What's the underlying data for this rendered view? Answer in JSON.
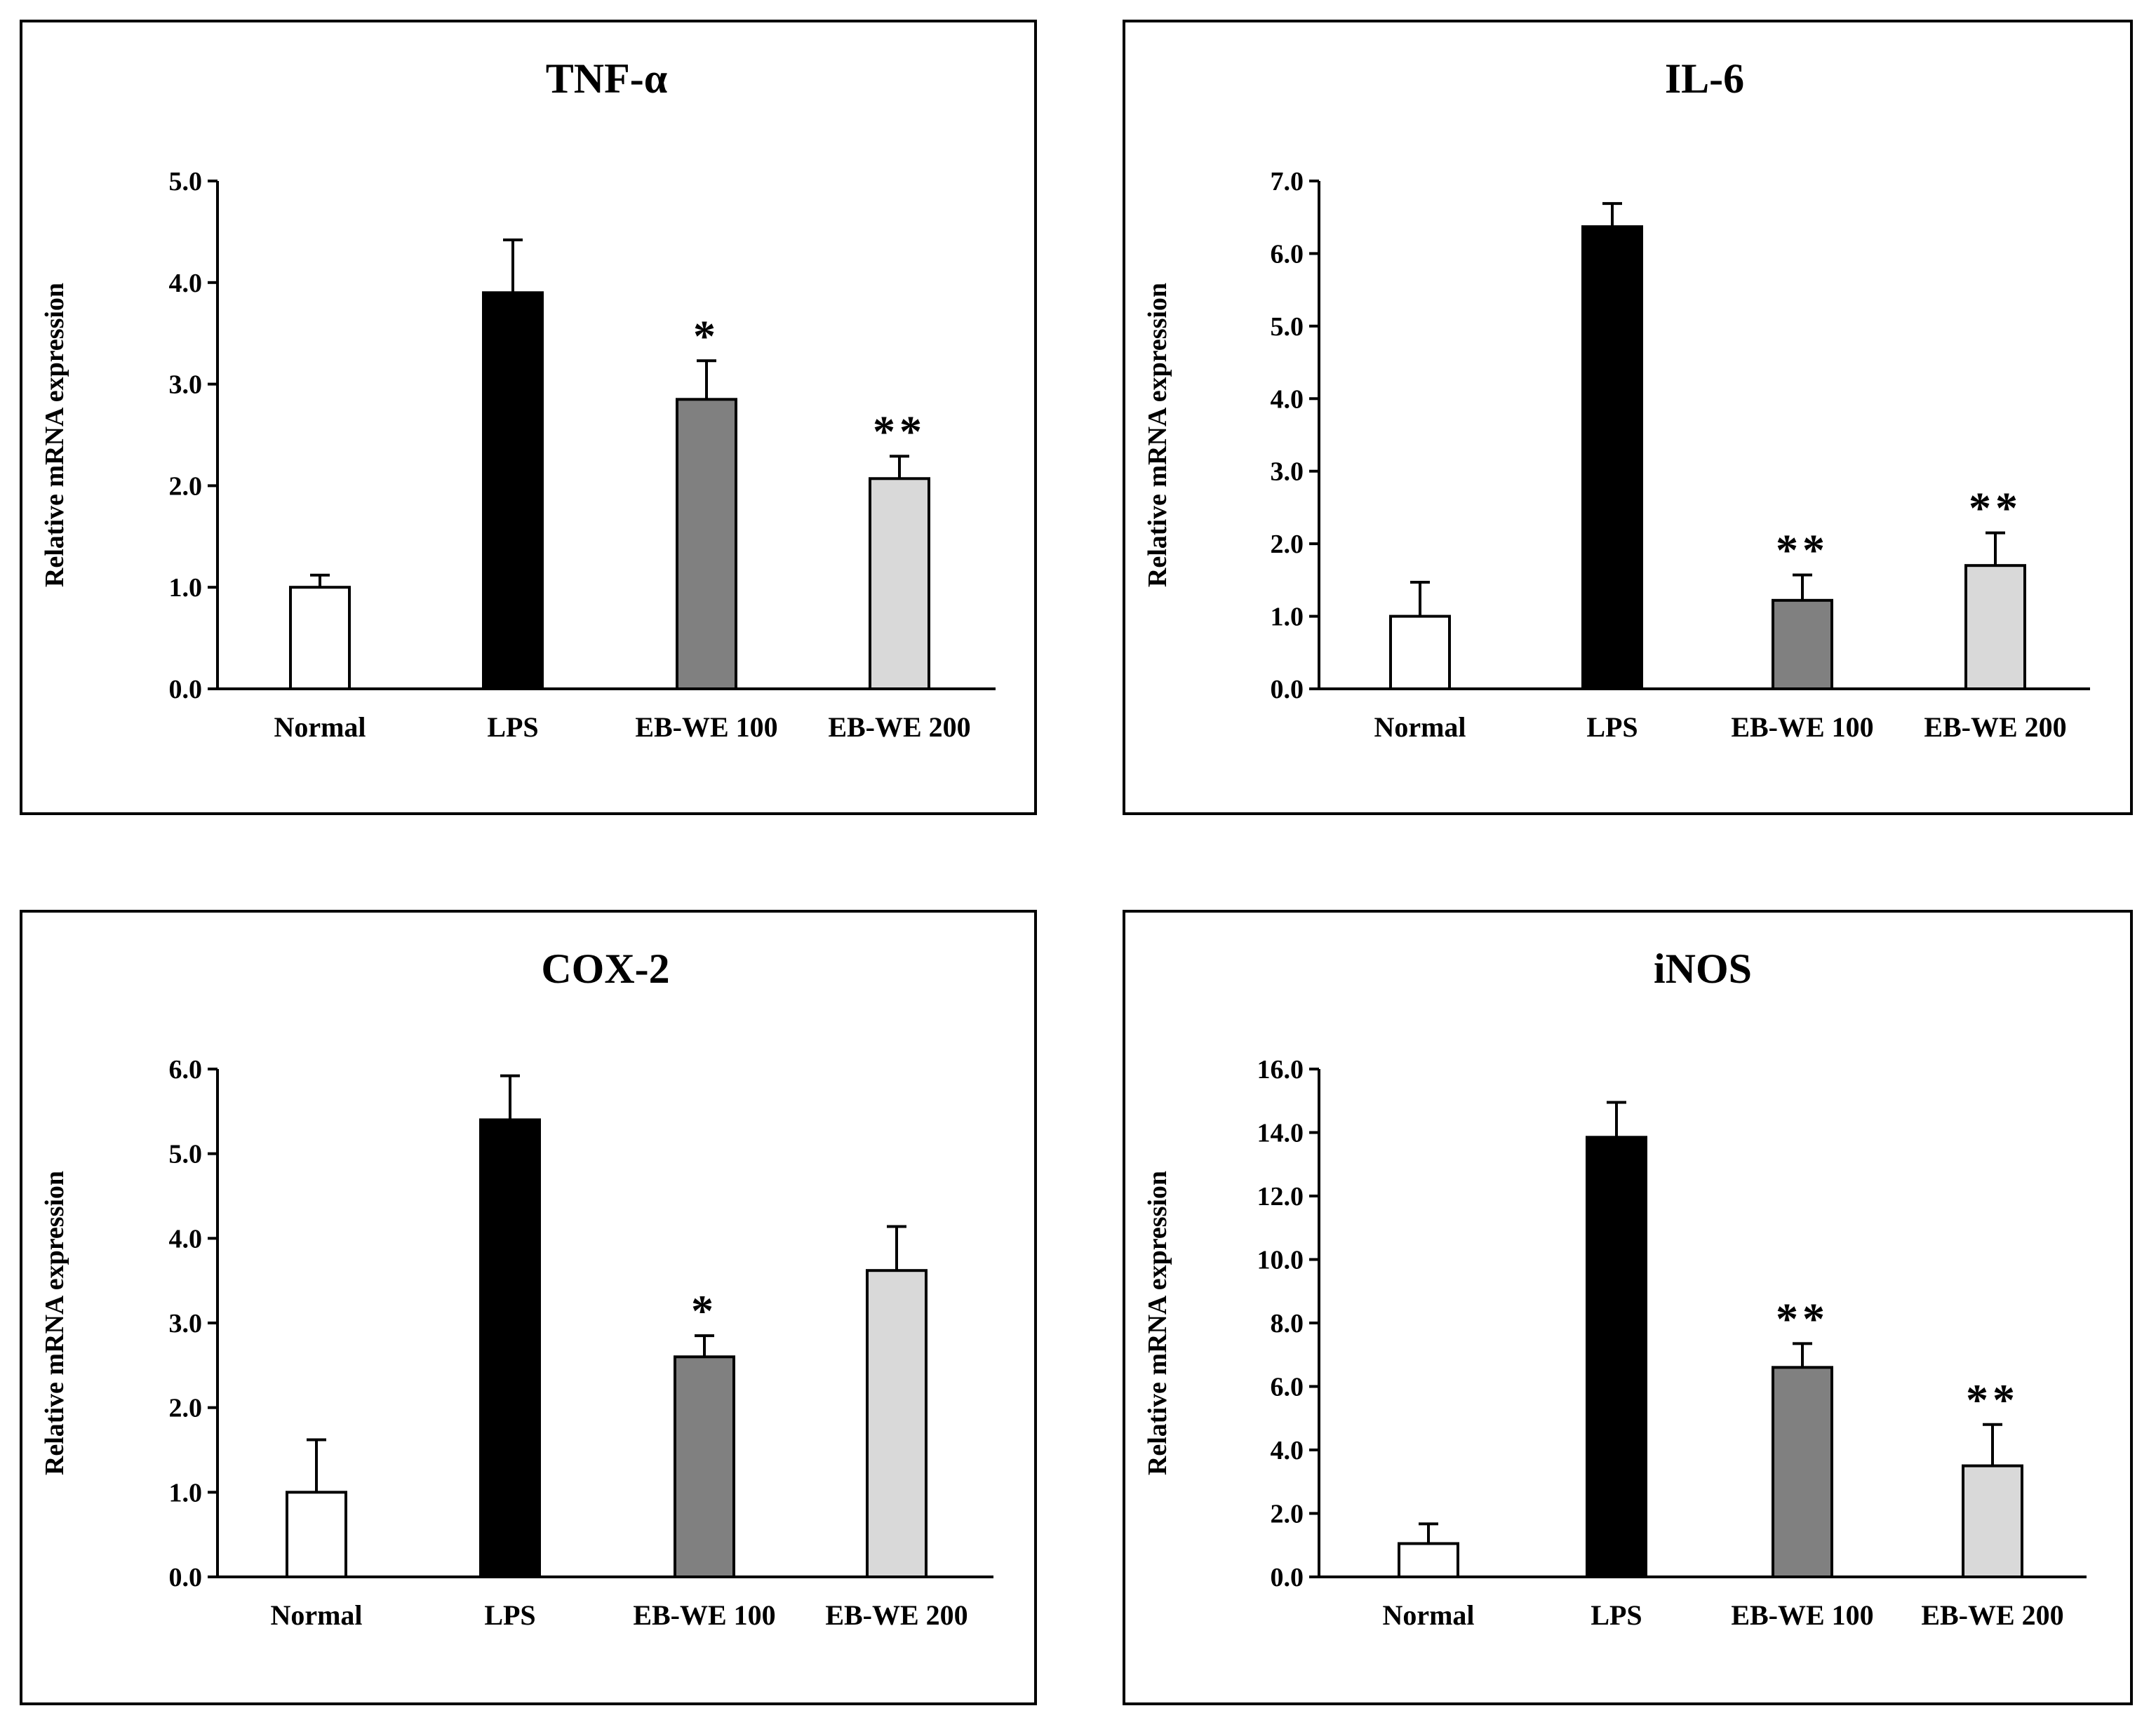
{
  "chart_data": [
    {
      "type": "bar",
      "title": "TNF-α",
      "ylabel": "Relative mRNA expression",
      "xlabel": "",
      "categories": [
        "Normal",
        "LPS",
        "EB-WE 100",
        "EB-WE 200"
      ],
      "values": [
        1.0,
        3.9,
        2.85,
        2.07
      ],
      "errors": [
        0.12,
        0.52,
        0.38,
        0.22
      ],
      "significance": [
        "",
        "",
        "*",
        "**"
      ],
      "ylim": [
        0,
        5
      ],
      "yticks": [
        "0.0",
        "1.0",
        "2.0",
        "3.0",
        "4.0",
        "5.0"
      ],
      "bar_colors": [
        "#ffffff",
        "#000000",
        "#808080",
        "#d9d9d9"
      ]
    },
    {
      "type": "bar",
      "title": "IL-6",
      "ylabel": "Relative mRNA expression",
      "xlabel": "",
      "categories": [
        "Normal",
        "LPS",
        "EB-WE 100",
        "EB-WE 200"
      ],
      "values": [
        1.0,
        6.37,
        1.22,
        1.7
      ],
      "errors": [
        0.47,
        0.32,
        0.35,
        0.45
      ],
      "significance": [
        "",
        "",
        "**",
        "**"
      ],
      "ylim": [
        0,
        7
      ],
      "yticks": [
        "0.0",
        "1.0",
        "2.0",
        "3.0",
        "4.0",
        "5.0",
        "6.0",
        "7.0"
      ],
      "bar_colors": [
        "#ffffff",
        "#000000",
        "#808080",
        "#d9d9d9"
      ]
    },
    {
      "type": "bar",
      "title": "COX-2",
      "ylabel": "Relative mRNA expression",
      "xlabel": "",
      "categories": [
        "Normal",
        "LPS",
        "EB-WE 100",
        "EB-WE 200"
      ],
      "values": [
        1.0,
        5.4,
        2.6,
        3.62
      ],
      "errors": [
        0.62,
        0.52,
        0.25,
        0.52
      ],
      "significance": [
        "",
        "",
        "*",
        ""
      ],
      "ylim": [
        0,
        6
      ],
      "yticks": [
        "0.0",
        "1.0",
        "2.0",
        "3.0",
        "4.0",
        "5.0",
        "6.0"
      ],
      "bar_colors": [
        "#ffffff",
        "#000000",
        "#808080",
        "#d9d9d9"
      ]
    },
    {
      "type": "bar",
      "title": "iNOS",
      "ylabel": "Relative mRNA expression",
      "xlabel": "",
      "categories": [
        "Normal",
        "LPS",
        "EB-WE 100",
        "EB-WE 200"
      ],
      "values": [
        1.05,
        13.85,
        6.6,
        3.5
      ],
      "errors": [
        0.62,
        1.1,
        0.75,
        1.3
      ],
      "significance": [
        "",
        "",
        "**",
        "**"
      ],
      "ylim": [
        0,
        16
      ],
      "yticks": [
        "0.0",
        "2.0",
        "4.0",
        "6.0",
        "8.0",
        "10.0",
        "12.0",
        "14.0",
        "16.0"
      ],
      "bar_colors": [
        "#ffffff",
        "#000000",
        "#808080",
        "#d9d9d9"
      ]
    }
  ]
}
